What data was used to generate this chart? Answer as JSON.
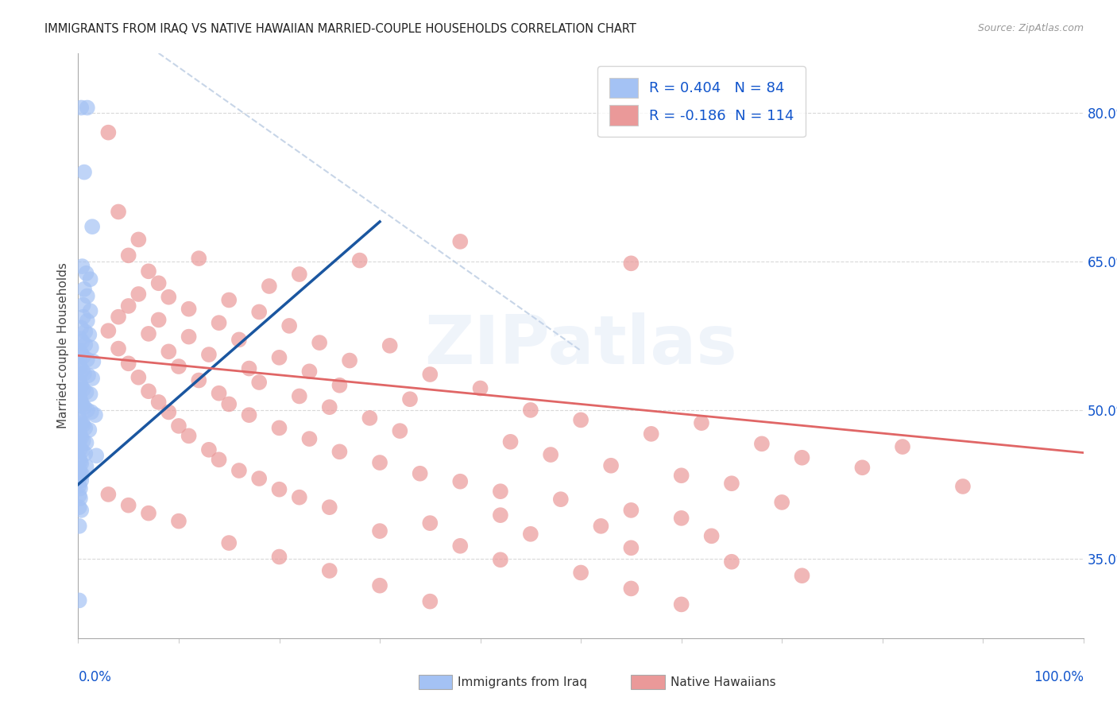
{
  "title": "IMMIGRANTS FROM IRAQ VS NATIVE HAWAIIAN MARRIED-COUPLE HOUSEHOLDS CORRELATION CHART",
  "source": "Source: ZipAtlas.com",
  "ylabel": "Married-couple Households",
  "blue_R": 0.404,
  "blue_N": 84,
  "pink_R": -0.186,
  "pink_N": 114,
  "blue_color": "#a4c2f4",
  "pink_color": "#ea9999",
  "blue_line_color": "#1a56a0",
  "pink_line_color": "#e06666",
  "diagonal_color": "#b0c4de",
  "title_color": "#222222",
  "source_color": "#999999",
  "legend_R_color": "#1155cc",
  "background_color": "#ffffff",
  "grid_color": "#d9d9d9",
  "axis_label_color": "#1155cc",
  "legend_blue_label": "Immigrants from Iraq",
  "legend_pink_label": "Native Hawaiians",
  "ytick_labels": [
    "35.0%",
    "50.0%",
    "65.0%",
    "80.0%"
  ],
  "ytick_values": [
    0.35,
    0.5,
    0.65,
    0.8
  ],
  "xlim": [
    0.0,
    1.0
  ],
  "ylim": [
    0.27,
    0.86
  ],
  "blue_points": [
    [
      0.003,
      0.805
    ],
    [
      0.009,
      0.805
    ],
    [
      0.006,
      0.74
    ],
    [
      0.014,
      0.685
    ],
    [
      0.004,
      0.645
    ],
    [
      0.008,
      0.638
    ],
    [
      0.012,
      0.632
    ],
    [
      0.006,
      0.622
    ],
    [
      0.009,
      0.615
    ],
    [
      0.005,
      0.606
    ],
    [
      0.012,
      0.6
    ],
    [
      0.005,
      0.594
    ],
    [
      0.009,
      0.59
    ],
    [
      0.003,
      0.583
    ],
    [
      0.007,
      0.579
    ],
    [
      0.011,
      0.576
    ],
    [
      0.002,
      0.572
    ],
    [
      0.004,
      0.569
    ],
    [
      0.007,
      0.566
    ],
    [
      0.013,
      0.563
    ],
    [
      0.001,
      0.56
    ],
    [
      0.003,
      0.557
    ],
    [
      0.005,
      0.554
    ],
    [
      0.009,
      0.551
    ],
    [
      0.015,
      0.549
    ],
    [
      0.001,
      0.546
    ],
    [
      0.002,
      0.543
    ],
    [
      0.004,
      0.54
    ],
    [
      0.006,
      0.537
    ],
    [
      0.01,
      0.535
    ],
    [
      0.014,
      0.532
    ],
    [
      0.001,
      0.529
    ],
    [
      0.002,
      0.526
    ],
    [
      0.003,
      0.524
    ],
    [
      0.005,
      0.521
    ],
    [
      0.008,
      0.518
    ],
    [
      0.012,
      0.516
    ],
    [
      0.001,
      0.513
    ],
    [
      0.002,
      0.51
    ],
    [
      0.003,
      0.508
    ],
    [
      0.004,
      0.505
    ],
    [
      0.006,
      0.503
    ],
    [
      0.009,
      0.5
    ],
    [
      0.013,
      0.498
    ],
    [
      0.017,
      0.495
    ],
    [
      0.001,
      0.492
    ],
    [
      0.002,
      0.49
    ],
    [
      0.004,
      0.487
    ],
    [
      0.005,
      0.485
    ],
    [
      0.007,
      0.482
    ],
    [
      0.011,
      0.48
    ],
    [
      0.001,
      0.477
    ],
    [
      0.002,
      0.474
    ],
    [
      0.003,
      0.472
    ],
    [
      0.005,
      0.469
    ],
    [
      0.008,
      0.467
    ],
    [
      0.001,
      0.464
    ],
    [
      0.002,
      0.461
    ],
    [
      0.004,
      0.459
    ],
    [
      0.007,
      0.456
    ],
    [
      0.018,
      0.454
    ],
    [
      0.001,
      0.451
    ],
    [
      0.002,
      0.448
    ],
    [
      0.003,
      0.446
    ],
    [
      0.008,
      0.443
    ],
    [
      0.001,
      0.44
    ],
    [
      0.002,
      0.437
    ],
    [
      0.004,
      0.435
    ],
    [
      0.001,
      0.432
    ],
    [
      0.003,
      0.429
    ],
    [
      0.001,
      0.424
    ],
    [
      0.002,
      0.421
    ],
    [
      0.001,
      0.414
    ],
    [
      0.002,
      0.411
    ],
    [
      0.001,
      0.402
    ],
    [
      0.003,
      0.399
    ],
    [
      0.001,
      0.383
    ],
    [
      0.001,
      0.308
    ]
  ],
  "pink_points": [
    [
      0.03,
      0.78
    ],
    [
      0.04,
      0.7
    ],
    [
      0.06,
      0.672
    ],
    [
      0.38,
      0.67
    ],
    [
      0.05,
      0.656
    ],
    [
      0.12,
      0.653
    ],
    [
      0.28,
      0.651
    ],
    [
      0.55,
      0.648
    ],
    [
      0.07,
      0.64
    ],
    [
      0.22,
      0.637
    ],
    [
      0.08,
      0.628
    ],
    [
      0.19,
      0.625
    ],
    [
      0.06,
      0.617
    ],
    [
      0.09,
      0.614
    ],
    [
      0.15,
      0.611
    ],
    [
      0.05,
      0.605
    ],
    [
      0.11,
      0.602
    ],
    [
      0.18,
      0.599
    ],
    [
      0.04,
      0.594
    ],
    [
      0.08,
      0.591
    ],
    [
      0.14,
      0.588
    ],
    [
      0.21,
      0.585
    ],
    [
      0.03,
      0.58
    ],
    [
      0.07,
      0.577
    ],
    [
      0.11,
      0.574
    ],
    [
      0.16,
      0.571
    ],
    [
      0.24,
      0.568
    ],
    [
      0.31,
      0.565
    ],
    [
      0.04,
      0.562
    ],
    [
      0.09,
      0.559
    ],
    [
      0.13,
      0.556
    ],
    [
      0.2,
      0.553
    ],
    [
      0.27,
      0.55
    ],
    [
      0.05,
      0.547
    ],
    [
      0.1,
      0.544
    ],
    [
      0.17,
      0.542
    ],
    [
      0.23,
      0.539
    ],
    [
      0.35,
      0.536
    ],
    [
      0.06,
      0.533
    ],
    [
      0.12,
      0.53
    ],
    [
      0.18,
      0.528
    ],
    [
      0.26,
      0.525
    ],
    [
      0.4,
      0.522
    ],
    [
      0.07,
      0.519
    ],
    [
      0.14,
      0.517
    ],
    [
      0.22,
      0.514
    ],
    [
      0.33,
      0.511
    ],
    [
      0.08,
      0.508
    ],
    [
      0.15,
      0.506
    ],
    [
      0.25,
      0.503
    ],
    [
      0.45,
      0.5
    ],
    [
      0.09,
      0.498
    ],
    [
      0.17,
      0.495
    ],
    [
      0.29,
      0.492
    ],
    [
      0.5,
      0.49
    ],
    [
      0.62,
      0.487
    ],
    [
      0.1,
      0.484
    ],
    [
      0.2,
      0.482
    ],
    [
      0.32,
      0.479
    ],
    [
      0.57,
      0.476
    ],
    [
      0.11,
      0.474
    ],
    [
      0.23,
      0.471
    ],
    [
      0.43,
      0.468
    ],
    [
      0.68,
      0.466
    ],
    [
      0.82,
      0.463
    ],
    [
      0.13,
      0.46
    ],
    [
      0.26,
      0.458
    ],
    [
      0.47,
      0.455
    ],
    [
      0.72,
      0.452
    ],
    [
      0.14,
      0.45
    ],
    [
      0.3,
      0.447
    ],
    [
      0.53,
      0.444
    ],
    [
      0.78,
      0.442
    ],
    [
      0.16,
      0.439
    ],
    [
      0.34,
      0.436
    ],
    [
      0.6,
      0.434
    ],
    [
      0.18,
      0.431
    ],
    [
      0.38,
      0.428
    ],
    [
      0.65,
      0.426
    ],
    [
      0.88,
      0.423
    ],
    [
      0.2,
      0.42
    ],
    [
      0.42,
      0.418
    ],
    [
      0.03,
      0.415
    ],
    [
      0.22,
      0.412
    ],
    [
      0.48,
      0.41
    ],
    [
      0.7,
      0.407
    ],
    [
      0.05,
      0.404
    ],
    [
      0.25,
      0.402
    ],
    [
      0.55,
      0.399
    ],
    [
      0.07,
      0.396
    ],
    [
      0.42,
      0.394
    ],
    [
      0.6,
      0.391
    ],
    [
      0.1,
      0.388
    ],
    [
      0.35,
      0.386
    ],
    [
      0.52,
      0.383
    ],
    [
      0.3,
      0.378
    ],
    [
      0.45,
      0.375
    ],
    [
      0.63,
      0.373
    ],
    [
      0.15,
      0.366
    ],
    [
      0.38,
      0.363
    ],
    [
      0.55,
      0.361
    ],
    [
      0.2,
      0.352
    ],
    [
      0.42,
      0.349
    ],
    [
      0.65,
      0.347
    ],
    [
      0.25,
      0.338
    ],
    [
      0.5,
      0.336
    ],
    [
      0.72,
      0.333
    ],
    [
      0.3,
      0.323
    ],
    [
      0.55,
      0.32
    ],
    [
      0.35,
      0.307
    ],
    [
      0.6,
      0.304
    ]
  ],
  "blue_line_x": [
    0.0,
    0.3
  ],
  "blue_line_y": [
    0.425,
    0.69
  ],
  "pink_line_x": [
    0.0,
    1.0
  ],
  "pink_line_y": [
    0.555,
    0.457
  ],
  "diag_line_x": [
    0.08,
    0.5
  ],
  "diag_line_y": [
    0.86,
    0.56
  ]
}
